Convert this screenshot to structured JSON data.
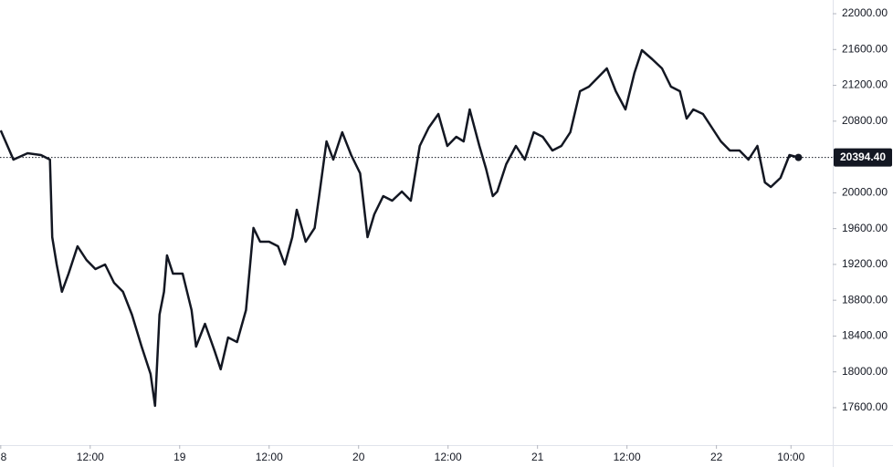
{
  "chart_data": {
    "type": "line",
    "color": "#131722",
    "x": [
      0,
      0.9,
      1.7,
      3.6,
      5.4,
      6.6,
      6.9,
      7.5,
      8.2,
      9.1,
      10.3,
      11.5,
      12.7,
      14.0,
      15.2,
      16.4,
      17.6,
      18.9,
      20.1,
      20.7,
      21.3,
      21.9,
      22.3,
      23.1,
      24.4,
      25.6,
      26.2,
      27.4,
      28.7,
      29.5,
      30.5,
      31.7,
      32.9,
      33.9,
      34.8,
      36.0,
      37.2,
      38.1,
      39.1,
      39.7,
      40.9,
      42.1,
      42.7,
      43.7,
      44.6,
      45.8,
      47.0,
      48.2,
      49.2,
      50.1,
      51.3,
      52.5,
      53.8,
      55.0,
      56.2,
      57.4,
      58.7,
      59.9,
      61.1,
      62.1,
      62.9,
      64.2,
      65.1,
      66.0,
      66.6,
      67.8,
      69.1,
      70.3,
      71.5,
      72.7,
      74.0,
      75.2,
      76.4,
      77.7,
      78.9,
      80.1,
      81.3,
      82.5,
      83.8,
      85.0,
      86.0,
      87.4,
      88.7,
      89.9,
      91.1,
      92.0,
      92.9,
      94.2,
      95.4,
      96.6,
      97.8,
      99.1,
      100.3,
      101.5,
      102.5,
      103.3,
      104.6,
      105.8,
      107.0
    ],
    "values": [
      20696,
      20523,
      20370,
      20442,
      20421,
      20370,
      19505,
      19199,
      18894,
      19097,
      19403,
      19250,
      19148,
      19199,
      18995,
      18894,
      18639,
      18282,
      17977,
      17621,
      18639,
      18894,
      19301,
      19097,
      19097,
      18690,
      18282,
      18537,
      18232,
      18028,
      18384,
      18333,
      18690,
      19607,
      19454,
      19454,
      19403,
      19199,
      19505,
      19810,
      19454,
      19607,
      19963,
      20574,
      20370,
      20676,
      20421,
      20218,
      19505,
      19759,
      19963,
      19912,
      20014,
      19912,
      20523,
      20727,
      20880,
      20523,
      20625,
      20574,
      20931,
      20523,
      20269,
      19963,
      20014,
      20319,
      20523,
      20370,
      20676,
      20625,
      20472,
      20523,
      20676,
      21134,
      21185,
      21287,
      21389,
      21134,
      20931,
      21338,
      21593,
      21491,
      21389,
      21185,
      21134,
      20829,
      20931,
      20880,
      20727,
      20574,
      20472,
      20472,
      20370,
      20523,
      20116,
      20065,
      20167,
      20421,
      20394.4
    ],
    "value_labels": [
      null,
      null,
      null,
      null,
      null,
      null,
      null,
      null,
      null,
      null,
      null,
      null,
      null,
      null,
      null,
      null,
      null,
      null,
      null,
      null,
      null,
      null,
      null,
      null,
      null,
      null,
      null,
      null,
      null,
      null,
      null,
      null,
      null,
      null,
      null,
      null,
      null,
      null,
      null,
      null,
      null,
      null,
      null,
      null,
      null,
      null,
      null,
      null,
      null,
      null,
      null,
      null,
      null,
      null,
      null,
      null,
      null,
      null,
      null,
      null,
      null,
      null,
      null,
      null,
      null,
      null,
      null,
      null,
      null,
      null,
      null,
      null,
      null,
      null,
      null,
      null,
      null,
      null,
      null,
      null,
      null,
      null,
      null,
      null,
      null,
      null,
      null,
      null,
      null,
      null,
      null,
      null,
      null,
      null,
      null,
      null,
      null,
      null,
      "20394.40"
    ],
    "xlim": [
      -0.1,
      111.6
    ],
    "xticks": [
      {
        "value": 0,
        "label": "8"
      },
      {
        "value": 12,
        "label": "12:00"
      },
      {
        "value": 24,
        "label": "19"
      },
      {
        "value": 36,
        "label": "12:00"
      },
      {
        "value": 48,
        "label": "20"
      },
      {
        "value": 60,
        "label": "12:00"
      },
      {
        "value": 72,
        "label": "21"
      },
      {
        "value": 84,
        "label": "12:00"
      },
      {
        "value": 96,
        "label": "22"
      },
      {
        "value": 106,
        "label": "10:00"
      }
    ],
    "ylim": [
      17182,
      22153
    ],
    "yticks": [
      {
        "value": 17600,
        "label": "17600.00"
      },
      {
        "value": 18000,
        "label": "18000.00"
      },
      {
        "value": 18400,
        "label": "18400.00"
      },
      {
        "value": 18800,
        "label": "18800.00"
      },
      {
        "value": 19200,
        "label": "19200.00"
      },
      {
        "value": 19600,
        "label": "19600.00"
      },
      {
        "value": 20000,
        "label": "20000.00"
      },
      {
        "value": 20400,
        "label": "20400.00"
      },
      {
        "value": 20800,
        "label": "20800.00"
      },
      {
        "value": 21200,
        "label": "21200.00"
      },
      {
        "value": 21600,
        "label": "21600.00"
      },
      {
        "value": 22000,
        "label": "22000.00"
      }
    ],
    "grid": false
  }
}
